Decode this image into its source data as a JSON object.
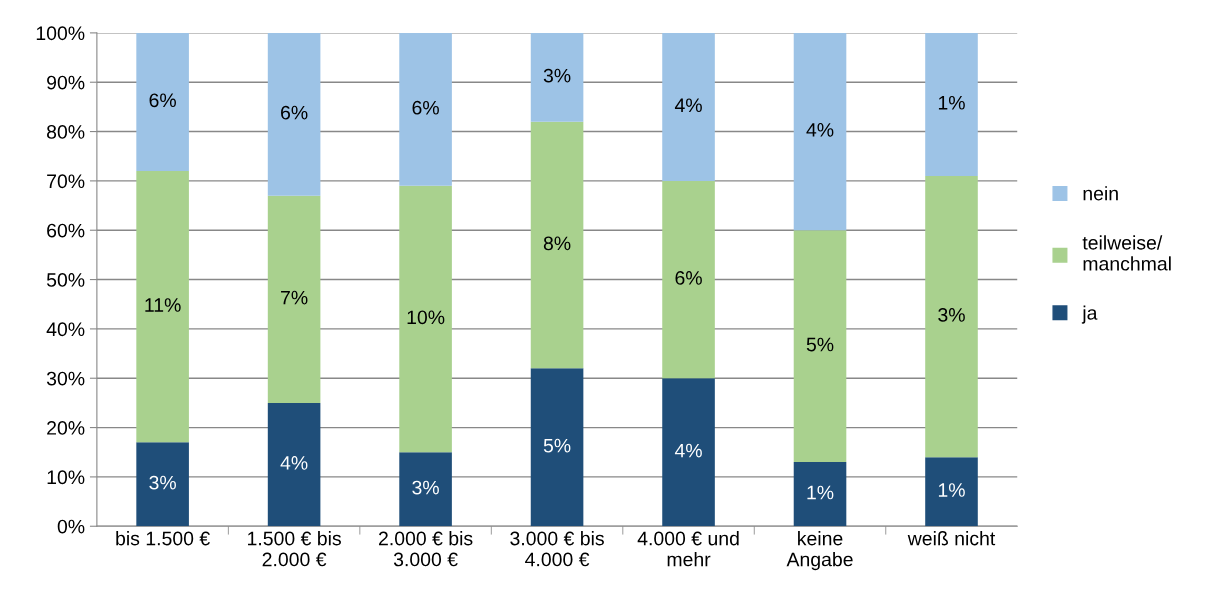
{
  "chart_data": {
    "type": "bar",
    "stacked": true,
    "categories": [
      "bis 1.500 €",
      "1.500 € bis\n2.000 €",
      "2.000 € bis\n3.000 €",
      "3.000 € bis\n4.000 €",
      "4.000 € und\nmehr",
      "keine\nAngabe",
      "weiß nicht"
    ],
    "series": [
      {
        "name": "ja",
        "color": "#1f4e79",
        "values": [
          17,
          25,
          15,
          32,
          30,
          13,
          14
        ]
      },
      {
        "name": "teilweise/\nmanchmal",
        "color": "#a9d18e",
        "values": [
          55,
          42,
          54,
          50,
          40,
          47,
          57
        ]
      },
      {
        "name": "nein",
        "color": "#9dc3e6",
        "values": [
          28,
          33,
          31,
          18,
          30,
          40,
          29
        ]
      }
    ],
    "annotations": [
      "3%",
      "4%",
      "3%",
      "5%",
      "4%",
      "1%",
      "1%",
      "11%",
      "7%",
      "10%",
      "8%",
      "6%",
      "5%",
      "3%",
      "6%",
      "6%",
      "6%",
      "3%",
      "4%",
      "4%",
      "1%"
    ],
    "ylim": [
      0,
      100
    ],
    "yticks": [
      {
        "value": 0,
        "label": "0%"
      },
      {
        "value": 10,
        "label": "10%"
      },
      {
        "value": 20,
        "label": "20%"
      },
      {
        "value": 30,
        "label": "30%"
      },
      {
        "value": 40,
        "label": "40%"
      },
      {
        "value": 50,
        "label": "50%"
      },
      {
        "value": 60,
        "label": "60%"
      },
      {
        "value": 70,
        "label": "70%"
      },
      {
        "value": 80,
        "label": "80%"
      },
      {
        "value": 90,
        "label": "90%"
      },
      {
        "value": 100,
        "label": "100%"
      }
    ],
    "grid": "y",
    "legend": "right"
  }
}
